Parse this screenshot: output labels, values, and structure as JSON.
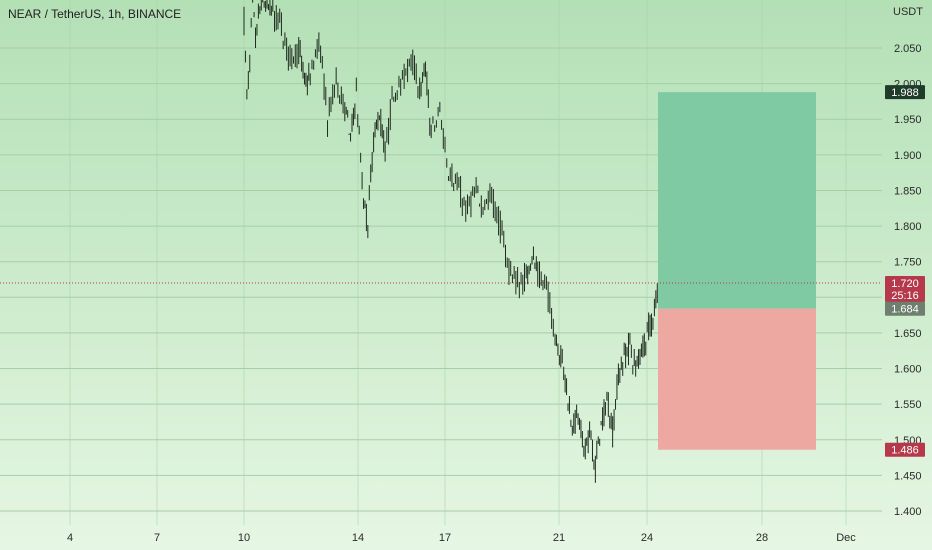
{
  "header": {
    "title": "NEAR / TetherUS, 1h, BINANCE"
  },
  "colors": {
    "candle": "#1e2b1e",
    "profit_zone": "#7fcaa2",
    "loss_zone": "#eca8a1",
    "current_price": "#b5394a",
    "entry_price": "#6f7f6f",
    "take_profit": "#1f3b2a",
    "stop_loss": "#b5394a",
    "grid": "#a6cfa6"
  },
  "chart_data": {
    "type": "candlestick",
    "title": "NEAR / TetherUS, 1h, BINANCE",
    "y_unit": "USDT",
    "ylim": [
      1.375,
      2.11
    ],
    "y_ticks": [
      "2.050",
      "2.000",
      "1.950",
      "1.900",
      "1.850",
      "1.800",
      "1.750",
      "1.700",
      "1.650",
      "1.600",
      "1.550",
      "1.500",
      "1.450",
      "1.400"
    ],
    "x_ticks": [
      "4",
      "7",
      "10",
      "14",
      "17",
      "21",
      "24",
      "28",
      "Dec"
    ],
    "series": [
      {
        "x": [
          10.0,
          10.1,
          10.2,
          10.3,
          10.4,
          10.6,
          10.8,
          11.0,
          11.3,
          11.6,
          11.9,
          12.1,
          12.3,
          12.6,
          12.9,
          13.2,
          13.5,
          13.7,
          13.9,
          14.1,
          14.2,
          14.3,
          14.5,
          14.7,
          14.9,
          15.2,
          15.5,
          15.8,
          16.1,
          16.3,
          16.5,
          16.8,
          17.1,
          17.4,
          17.7,
          18.0,
          18.3,
          18.6,
          18.9,
          19.2,
          19.5,
          19.8,
          20.0,
          20.2,
          20.5,
          20.8,
          21.0,
          21.2,
          21.4,
          21.6,
          21.8,
          22.0,
          22.2,
          22.4,
          22.6,
          22.8,
          23.0,
          23.2,
          23.4,
          23.6,
          23.8,
          24.0,
          24.2,
          24.4
        ],
        "y": [
          2.09,
          1.98,
          2.03,
          2.11,
          2.06,
          2.12,
          2.11,
          2.1,
          2.08,
          2.03,
          2.05,
          2.0,
          2.01,
          2.06,
          1.95,
          2.0,
          1.97,
          1.92,
          1.99,
          1.86,
          1.82,
          1.81,
          1.92,
          1.96,
          1.9,
          1.99,
          2.0,
          2.04,
          1.99,
          2.02,
          1.93,
          1.96,
          1.88,
          1.86,
          1.82,
          1.85,
          1.83,
          1.84,
          1.8,
          1.74,
          1.72,
          1.73,
          1.76,
          1.73,
          1.71,
          1.65,
          1.62,
          1.57,
          1.52,
          1.53,
          1.48,
          1.51,
          1.46,
          1.52,
          1.56,
          1.51,
          1.59,
          1.62,
          1.63,
          1.6,
          1.63,
          1.65,
          1.67,
          1.72
        ]
      }
    ],
    "annotations": {
      "current_price": "1.720",
      "countdown": "25:16",
      "entry_price": "1.684",
      "take_profit": "1.988",
      "stop_loss": "1.486",
      "position_x": [
        24.5,
        30.3
      ]
    }
  }
}
